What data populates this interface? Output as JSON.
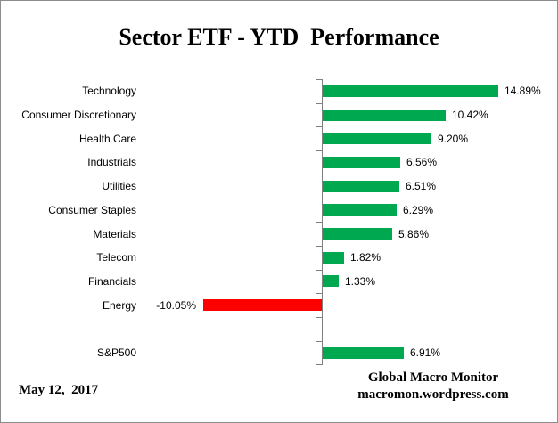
{
  "chart_data": {
    "type": "bar",
    "orientation": "horizontal",
    "title": "Sector ETF - YTD  Performance",
    "categories": [
      "Technology",
      "Consumer Discretionary",
      "Health Care",
      "Industrials",
      "Utilities",
      "Consumer Staples",
      "Materials",
      "Telecom",
      "Financials",
      "Energy",
      "",
      "S&P500"
    ],
    "values": [
      14.89,
      10.42,
      9.2,
      6.56,
      6.51,
      6.29,
      5.86,
      1.82,
      1.33,
      -10.05,
      null,
      6.91
    ],
    "value_labels": [
      "14.89%",
      "10.42%",
      "9.20%",
      "6.56%",
      "6.51%",
      "6.29%",
      "5.86%",
      "1.82%",
      "1.33%",
      "-10.05%",
      "",
      "6.91%"
    ],
    "xlabel": "",
    "ylabel": "",
    "x_axis_labels_visible": false,
    "grid": false,
    "legend": false,
    "bar_colors": {
      "positive": "#00A850",
      "negative": "#FF0000"
    },
    "axis_color": "#808080"
  },
  "footer": {
    "date": "May 12,  2017",
    "credit_line1": "Global Macro Monitor",
    "credit_line2": "macromon.wordpress.com"
  }
}
